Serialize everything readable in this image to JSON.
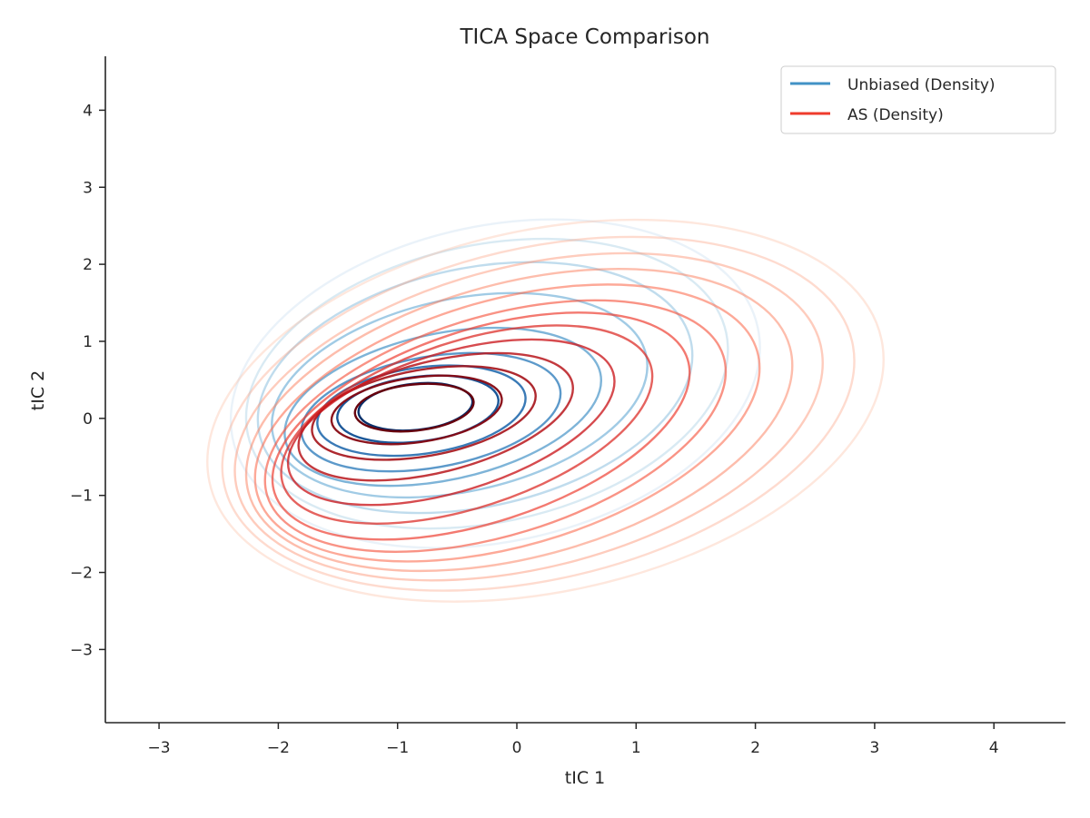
{
  "chart_data": {
    "type": "contour",
    "title": "TICA Space Comparison",
    "xlabel": "tIC 1",
    "ylabel": "tIC 2",
    "xlim": [
      -3.45,
      4.6
    ],
    "ylim": [
      -3.95,
      4.7
    ],
    "x_ticks": [
      -3,
      -2,
      -1,
      0,
      1,
      2,
      3,
      4
    ],
    "y_ticks": [
      -3,
      -2,
      -1,
      0,
      1,
      2,
      3,
      4
    ],
    "x_tick_labels": [
      "−3",
      "−2",
      "−1",
      "0",
      "1",
      "2",
      "3",
      "4"
    ],
    "y_tick_labels": [
      "−3",
      "−2",
      "−1",
      "0",
      "1",
      "2",
      "3",
      "4"
    ],
    "grid": false,
    "legend_position": "top-right",
    "legend": [
      {
        "label": "Unbiased (Density)",
        "color": "#4292c6"
      },
      {
        "label": "AS (Density)",
        "color": "#ef3b2c"
      }
    ],
    "series": [
      {
        "name": "Unbiased (Density)",
        "colormap": "Blues",
        "levels": 10,
        "center": [
          -0.85,
          0.15
        ],
        "contours": [
          {
            "cx": -0.85,
            "cy": 0.15,
            "rx": 0.48,
            "ry": 0.3,
            "rot": -6
          },
          {
            "cx": -0.83,
            "cy": 0.12,
            "rx": 0.68,
            "ry": 0.42,
            "rot": -7
          },
          {
            "cx": -0.8,
            "cy": 0.1,
            "rx": 0.88,
            "ry": 0.56,
            "rot": -8
          },
          {
            "cx": -0.72,
            "cy": 0.08,
            "rx": 1.1,
            "ry": 0.72,
            "rot": -10
          },
          {
            "cx": -0.62,
            "cy": 0.15,
            "rx": 1.35,
            "ry": 0.95,
            "rot": -12
          },
          {
            "cx": -0.48,
            "cy": 0.3,
            "rx": 1.6,
            "ry": 1.25,
            "rot": -12
          },
          {
            "cx": -0.35,
            "cy": 0.4,
            "rx": 1.85,
            "ry": 1.55,
            "rot": -12
          },
          {
            "cx": -0.25,
            "cy": 0.45,
            "rx": 2.05,
            "ry": 1.8,
            "rot": -12
          },
          {
            "cx": -0.18,
            "cy": 0.45,
            "rx": 2.25,
            "ry": 2.05,
            "rot": -12
          }
        ]
      },
      {
        "name": "AS (Density)",
        "colormap": "Reds",
        "levels": 14,
        "center": [
          -0.85,
          0.15
        ],
        "contours": [
          {
            "cx": -0.86,
            "cy": 0.14,
            "rx": 0.5,
            "ry": 0.3,
            "rot": -6
          },
          {
            "cx": -0.84,
            "cy": 0.11,
            "rx": 0.72,
            "ry": 0.42,
            "rot": -8
          },
          {
            "cx": -0.78,
            "cy": 0.07,
            "rx": 0.95,
            "ry": 0.56,
            "rot": -10
          },
          {
            "cx": -0.68,
            "cy": 0.02,
            "rx": 1.18,
            "ry": 0.72,
            "rot": -14
          },
          {
            "cx": -0.55,
            "cy": -0.05,
            "rx": 1.42,
            "ry": 0.9,
            "rot": -17
          },
          {
            "cx": -0.42,
            "cy": -0.08,
            "rx": 1.62,
            "ry": 1.08,
            "rot": -18
          },
          {
            "cx": -0.3,
            "cy": -0.1,
            "rx": 1.82,
            "ry": 1.25,
            "rot": -18
          },
          {
            "cx": -0.18,
            "cy": -0.1,
            "rx": 2.0,
            "ry": 1.42,
            "rot": -17
          },
          {
            "cx": -0.08,
            "cy": -0.06,
            "rx": 2.18,
            "ry": 1.6,
            "rot": -16
          },
          {
            "cx": 0.02,
            "cy": -0.02,
            "rx": 2.35,
            "ry": 1.78,
            "rot": -15
          },
          {
            "cx": 0.1,
            "cy": 0.02,
            "rx": 2.52,
            "ry": 1.96,
            "rot": -14
          },
          {
            "cx": 0.18,
            "cy": 0.06,
            "rx": 2.7,
            "ry": 2.15,
            "rot": -13
          },
          {
            "cx": 0.24,
            "cy": 0.1,
            "rx": 2.88,
            "ry": 2.35,
            "rot": -12
          }
        ]
      }
    ]
  }
}
